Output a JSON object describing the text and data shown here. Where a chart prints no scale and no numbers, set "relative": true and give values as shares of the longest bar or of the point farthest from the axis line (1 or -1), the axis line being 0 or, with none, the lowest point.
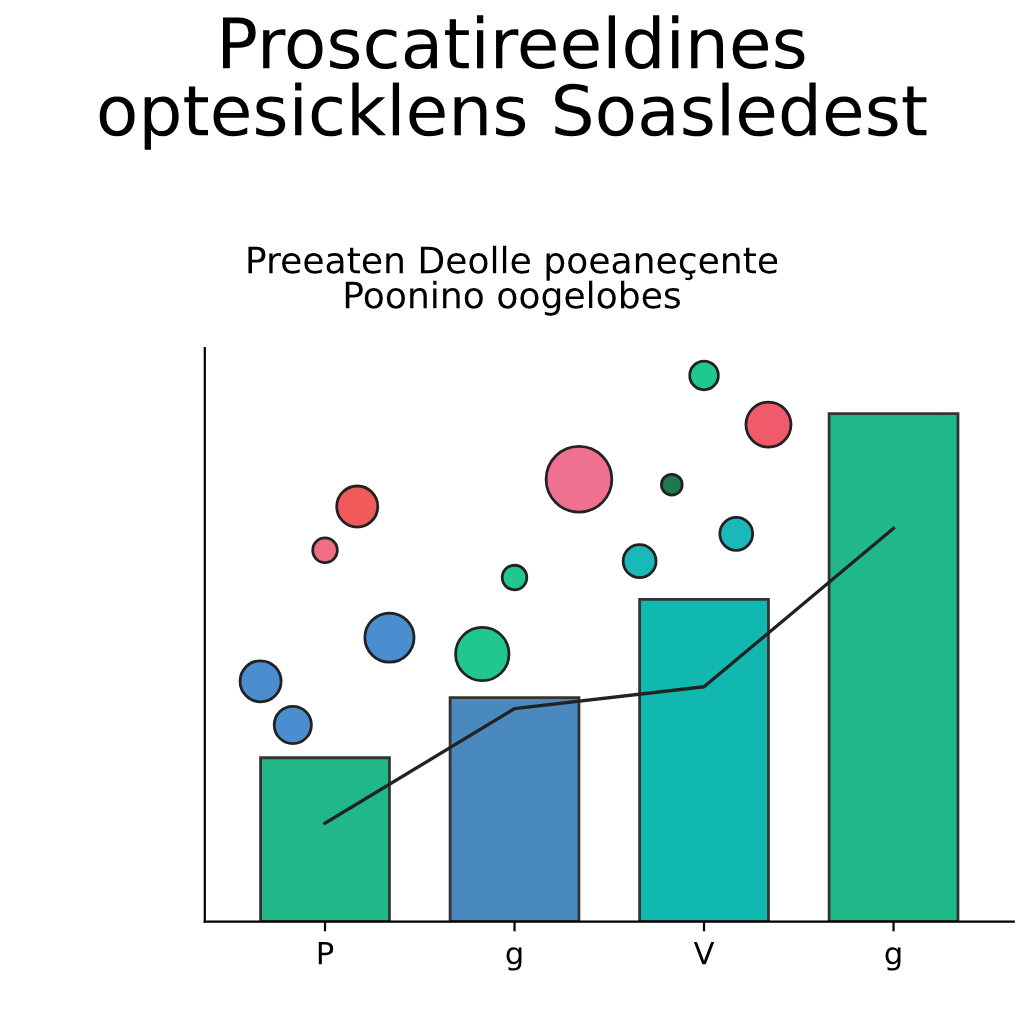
{
  "chart_data": {
    "type": "bar",
    "title": "Proscatireeldines\noptesicklens Soasledest",
    "subtitle": "Preeaten Deolle poeaneçente\nPoonino oogelobes",
    "relative": true,
    "categories": [
      "P",
      "g",
      "V",
      "g"
    ],
    "grid": false,
    "series": [
      {
        "colors": [
          "#20b888",
          "#4a88c0",
          "#10b8b0",
          "#20b888"
        ],
        "values": [
          0.3,
          0.41,
          0.59,
          0.93
        ]
      },
      {
        "type": "line",
        "color": "#222222",
        "values": [
          0.18,
          0.39,
          0.43,
          0.72
        ]
      },
      {
        "type": "bubble",
        "values": [
          0.44,
          null,
          0.66,
          null
        ],
        "sizes": [
          0.39,
          null,
          0.25,
          null
        ],
        "colors": [
          "#4a8ed0",
          null,
          "#1ab8b8",
          null
        ]
      },
      {
        "type": "bubble",
        "values": [
          0.36,
          0.49,
          0.8,
          null
        ],
        "sizes": [
          0.32,
          0.66,
          0.1,
          null
        ],
        "colors": [
          "#4a8ed0",
          "#20c890",
          "#1e7a4a",
          null
        ]
      },
      {
        "type": "bubble",
        "values": [
          0.68,
          0.63,
          1.0,
          null
        ],
        "sizes": [
          0.14,
          0.14,
          0.19,
          null
        ],
        "colors": [
          "#f06e82",
          "#20c890",
          "#20c890",
          null
        ]
      },
      {
        "type": "bubble",
        "values": [
          0.76,
          null,
          0.71,
          null
        ],
        "sizes": [
          0.39,
          null,
          0.25,
          null
        ],
        "colors": [
          "#f05a5a",
          null,
          "#1ab8b8",
          null
        ]
      },
      {
        "type": "bubble",
        "values": [
          0.52,
          0.81,
          0.91,
          null
        ],
        "sizes": [
          0.56,
          1,
          0.47,
          null
        ],
        "colors": [
          "#4a8ed0",
          "#f07090",
          "#f05a6a",
          null
        ]
      }
    ]
  }
}
